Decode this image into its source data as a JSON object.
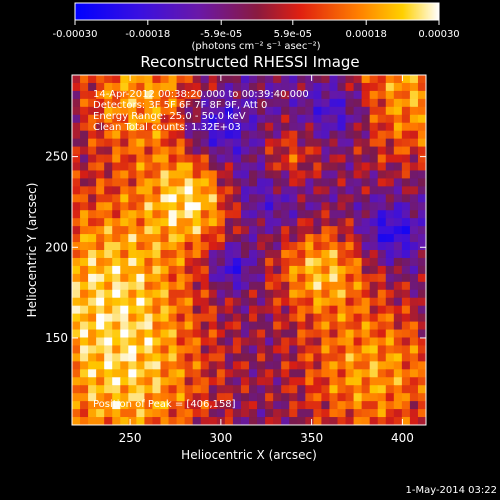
{
  "colorbar": {
    "tick_labels": [
      "-0.00030",
      "-0.00018",
      "-5.9e-05",
      "5.9e-05",
      "0.00018",
      "0.00030"
    ],
    "range": [
      -0.0003,
      0.0003
    ],
    "unit_label": "(photons cm⁻² s⁻¹ asec⁻²)",
    "colormap": [
      "#0000ff",
      "#6010c8",
      "#8a1a60",
      "#e02010",
      "#ff8000",
      "#ffd000",
      "#ffffff"
    ]
  },
  "chart_data": {
    "type": "heatmap",
    "title": "Reconstructed RHESSI Image",
    "xlabel": "Heliocentric X (arcsec)",
    "ylabel": "Heliocentric Y (arcsec)",
    "xlim": [
      218,
      413
    ],
    "ylim": [
      102,
      295
    ],
    "x_ticks": [
      250,
      300,
      350,
      400
    ],
    "y_ticks": [
      150,
      200,
      250
    ],
    "annotations": [
      "14-Apr-2012 00:38:20.000 to 00:39:40.000",
      "Detectors: 3F 5F 6F 7F 8F 9F, Att 0",
      "Energy Range: 25.0 - 50.0 keV",
      "Clean     Total counts: 1.32E+03"
    ],
    "peak_text": "Position of Peak = [406,158]",
    "peak": [
      406,
      158
    ]
  },
  "footer": {
    "timestamp": "1-May-2014 03:22"
  }
}
